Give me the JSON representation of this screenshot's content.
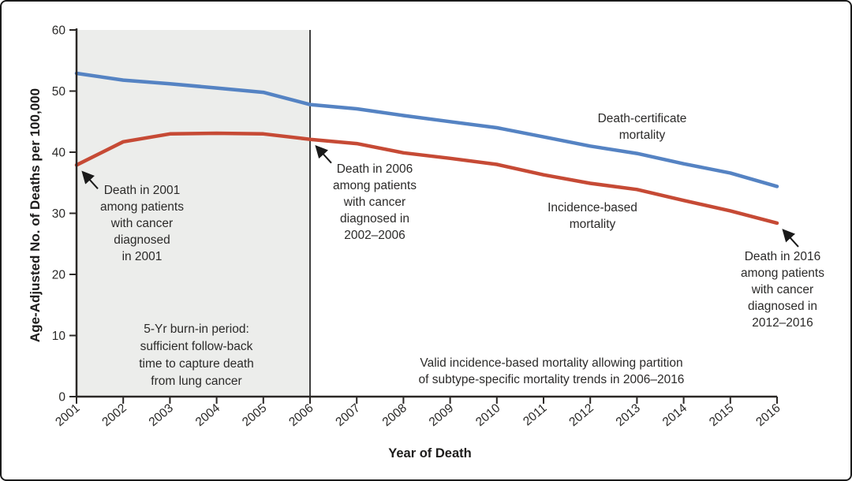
{
  "chart_data": {
    "type": "line",
    "title": "",
    "xlabel": "Year of Death",
    "ylabel": "Age-Adjusted No. of Deaths per 100,000",
    "ylim": [
      0,
      60
    ],
    "y_ticks": [
      0,
      10,
      20,
      30,
      40,
      50,
      60
    ],
    "grid": false,
    "legend_position": "inline-labels",
    "categories": [
      2001,
      2002,
      2003,
      2004,
      2005,
      2006,
      2007,
      2008,
      2009,
      2010,
      2011,
      2012,
      2013,
      2014,
      2015,
      2016
    ],
    "series": [
      {
        "name": "Death-certificate mortality",
        "color": "#5583c3",
        "values": [
          52.9,
          51.8,
          51.2,
          50.5,
          49.8,
          47.8,
          47.1,
          46.0,
          45.0,
          44.0,
          42.5,
          41.0,
          39.8,
          38.1,
          36.6,
          34.4
        ]
      },
      {
        "name": "Incidence-based mortality",
        "color": "#c64a35",
        "values": [
          37.9,
          41.7,
          43.0,
          43.1,
          43.0,
          42.1,
          41.4,
          39.9,
          39.0,
          38.0,
          36.3,
          34.9,
          33.9,
          32.1,
          30.4,
          28.4
        ]
      }
    ],
    "shaded_region": {
      "from_year": 2001,
      "to_year": 2006,
      "color": "#ecedeb"
    },
    "divider_year": 2006,
    "axis_color": "#2b2826",
    "divider_color": "#3f3f3f"
  },
  "labels": {
    "series_blue": "Death-certificate\nmortality",
    "series_red": "Incidence-based\nmortality",
    "burn_in": "5-Yr burn-in period:\nsufficient follow-back\ntime to capture death\nfrom lung cancer",
    "valid_region": "Valid incidence-based mortality allowing partition\nof subtype-specific mortality trends in 2006–2016"
  },
  "annotations": [
    {
      "text": "Death in 2001\namong patients\nwith cancer\ndiagnosed\nin 2001",
      "target_year": 2001,
      "target_series": 1
    },
    {
      "text": "Death in 2006\namong patients\nwith cancer\ndiagnosed in\n2002–2006",
      "target_year": 2006,
      "target_series": 1
    },
    {
      "text": "Death in 2016\namong patients\nwith cancer\ndiagnosed in\n2012–2016",
      "target_year": 2016,
      "target_series": 1
    }
  ]
}
